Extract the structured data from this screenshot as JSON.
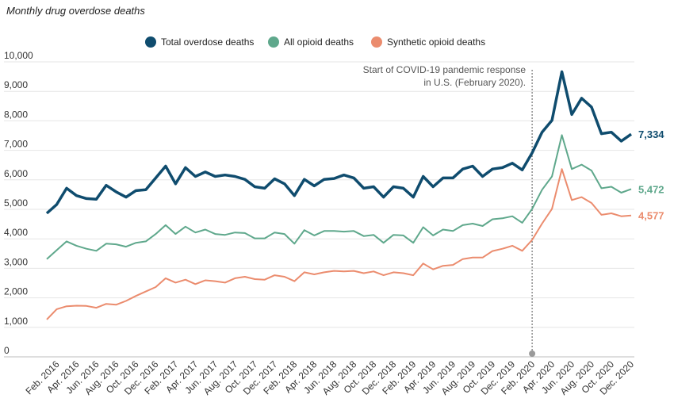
{
  "chart_data": {
    "type": "line",
    "title": "Monthly drug overdose deaths",
    "xlabel": "",
    "ylabel": "",
    "ylim": [
      0,
      10000
    ],
    "y_ticks": [
      "0",
      "1,000",
      "2,000",
      "3,000",
      "4,000",
      "5,000",
      "6,000",
      "7,000",
      "8,000",
      "9,000",
      "10,000"
    ],
    "grid": "horizontal",
    "legend_position": "top-center",
    "x": [
      "Jan. 2016",
      "Feb. 2016",
      "Mar. 2016",
      "Apr. 2016",
      "May 2016",
      "Jun. 2016",
      "Jul. 2016",
      "Aug. 2016",
      "Sep. 2016",
      "Oct. 2016",
      "Nov. 2016",
      "Dec. 2016",
      "Jan. 2017",
      "Feb. 2017",
      "Mar. 2017",
      "Apr. 2017",
      "May 2017",
      "Jun. 2017",
      "Jul. 2017",
      "Aug. 2017",
      "Sep. 2017",
      "Oct. 2017",
      "Nov. 2017",
      "Dec. 2017",
      "Jan. 2018",
      "Feb. 2018",
      "Mar. 2018",
      "Apr. 2018",
      "May 2018",
      "Jun. 2018",
      "Jul. 2018",
      "Aug. 2018",
      "Sep. 2018",
      "Oct. 2018",
      "Nov. 2018",
      "Dec. 2018",
      "Jan. 2019",
      "Feb. 2019",
      "Mar. 2019",
      "Apr. 2019",
      "May 2019",
      "Jun. 2019",
      "Jul. 2019",
      "Aug. 2019",
      "Sep. 2019",
      "Oct. 2019",
      "Nov. 2019",
      "Dec. 2019",
      "Jan. 2020",
      "Feb. 2020",
      "Mar. 2020",
      "Apr. 2020",
      "May 2020",
      "Jun. 2020",
      "Jul. 2020",
      "Aug. 2020",
      "Sep. 2020",
      "Oct. 2020",
      "Nov. 2020",
      "Dec. 2020"
    ],
    "x_tick_labels": [
      "Feb. 2016",
      "Apr. 2016",
      "Jun. 2016",
      "Aug. 2016",
      "Oct. 2016",
      "Dec. 2016",
      "Feb. 2017",
      "Apr. 2017",
      "Jun. 2017",
      "Aug. 2017",
      "Oct. 2017",
      "Dec. 2017",
      "Feb. 2018",
      "Apr. 2018",
      "Jun. 2018",
      "Aug. 2018",
      "Oct. 2018",
      "Dec. 2018",
      "Feb. 2019",
      "Apr. 2019",
      "Jun. 2019",
      "Aug. 2019",
      "Oct. 2019",
      "Dec. 2019",
      "Feb. 2020",
      "Apr. 2020",
      "Jun. 2020",
      "Aug. 2020",
      "Oct. 2020",
      "Dec. 2020"
    ],
    "series": [
      {
        "name": "Total overdose deaths",
        "color": "#0f4c6e",
        "end_label": "7,334",
        "values": [
          4650,
          4950,
          5500,
          5250,
          5150,
          5130,
          5600,
          5380,
          5200,
          5420,
          5450,
          5850,
          6250,
          5650,
          6200,
          5900,
          6050,
          5900,
          5950,
          5900,
          5800,
          5550,
          5500,
          5820,
          5650,
          5250,
          5800,
          5580,
          5800,
          5830,
          5950,
          5850,
          5500,
          5550,
          5200,
          5550,
          5500,
          5200,
          5900,
          5550,
          5850,
          5850,
          6150,
          6250,
          5900,
          6150,
          6200,
          6350,
          6120,
          6700,
          7400,
          7800,
          9450,
          8000,
          8550,
          8250,
          7350,
          7400,
          7100,
          7334
        ]
      },
      {
        "name": "All opioid deaths",
        "color": "#5fa88c",
        "end_label": "5,472",
        "values": [
          3100,
          3400,
          3700,
          3550,
          3450,
          3380,
          3620,
          3600,
          3520,
          3650,
          3700,
          3950,
          4250,
          3950,
          4200,
          4000,
          4100,
          3950,
          3920,
          4000,
          3980,
          3800,
          3800,
          4000,
          3950,
          3620,
          4080,
          3900,
          4050,
          4050,
          4030,
          4050,
          3880,
          3920,
          3650,
          3920,
          3900,
          3650,
          4180,
          3900,
          4100,
          4050,
          4250,
          4300,
          4220,
          4450,
          4480,
          4550,
          4330,
          4800,
          5450,
          5900,
          7300,
          6150,
          6300,
          6100,
          5500,
          5550,
          5350,
          5472
        ]
      },
      {
        "name": "Synthetic opioid deaths",
        "color": "#eb8c6e",
        "end_label": "4,577",
        "values": [
          1050,
          1400,
          1500,
          1520,
          1510,
          1450,
          1580,
          1550,
          1680,
          1850,
          2000,
          2150,
          2450,
          2300,
          2400,
          2250,
          2380,
          2350,
          2300,
          2450,
          2500,
          2420,
          2400,
          2550,
          2500,
          2350,
          2650,
          2580,
          2650,
          2700,
          2680,
          2700,
          2620,
          2680,
          2550,
          2650,
          2620,
          2550,
          2950,
          2750,
          2870,
          2900,
          3100,
          3150,
          3150,
          3370,
          3450,
          3550,
          3380,
          3750,
          4300,
          4800,
          6150,
          5100,
          5200,
          5000,
          4600,
          4650,
          4550,
          4577
        ]
      }
    ],
    "annotation": {
      "text_line1": "Start of COVID-19 pandemic response",
      "text_line2": "in U.S. (February 2020).",
      "at_x": "Feb. 2020"
    }
  }
}
